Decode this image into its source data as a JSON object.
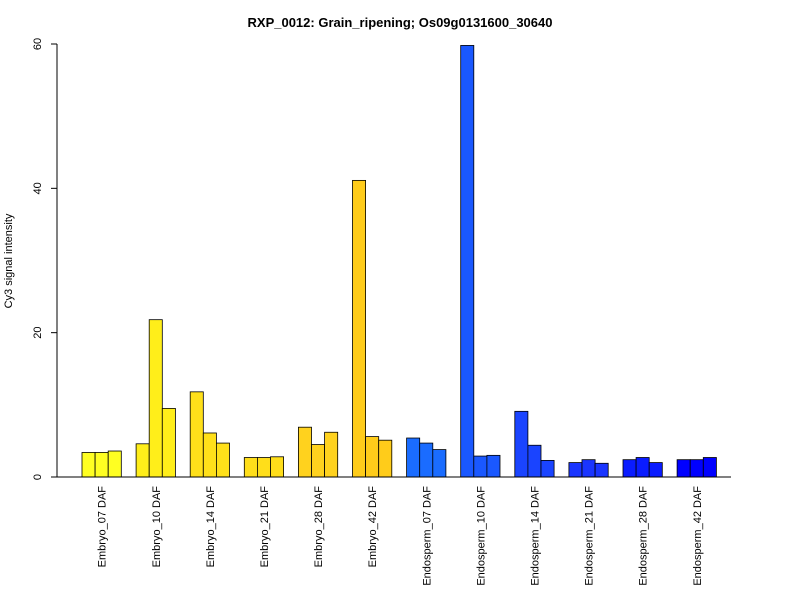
{
  "chart_data": {
    "type": "bar",
    "title": "RXP_0012: Grain_ripening; Os09g0131600_30640",
    "xlabel": "",
    "ylabel": "Cy3 signal intensity",
    "ylim": [
      0,
      60
    ],
    "yticks": [
      "0",
      "20",
      "40",
      "60"
    ],
    "grid": false,
    "legend": "none",
    "categories": [
      "Embryo_07 DAF",
      "Embryo_10 DAF",
      "Embryo_14 DAF",
      "Embryo_21 DAF",
      "Embryo_28 DAF",
      "Embryo_42 DAF",
      "Endosperm_07 DAF",
      "Endosperm_10 DAF",
      "Endosperm_14 DAF",
      "Endosperm_21 DAF",
      "Endosperm_28 DAF",
      "Endosperm_42 DAF"
    ],
    "groups": [
      {
        "color": "#ffff22",
        "values": [
          3.4,
          3.4,
          3.6
        ]
      },
      {
        "color": "#ffee1a",
        "values": [
          4.6,
          21.8,
          9.5
        ]
      },
      {
        "color": "#ffe01a",
        "values": [
          11.8,
          6.1,
          4.7
        ]
      },
      {
        "color": "#ffde1a",
        "values": [
          2.7,
          2.7,
          2.8
        ]
      },
      {
        "color": "#ffd21e",
        "values": [
          6.9,
          4.5,
          6.2
        ]
      },
      {
        "color": "#ffcc1a",
        "values": [
          41.1,
          5.6,
          5.1
        ]
      },
      {
        "color": "#1a6cff",
        "values": [
          5.4,
          4.7,
          3.8
        ]
      },
      {
        "color": "#1a58ff",
        "values": [
          59.8,
          2.9,
          3.0
        ]
      },
      {
        "color": "#1a44ff",
        "values": [
          9.1,
          4.4,
          2.3
        ]
      },
      {
        "color": "#1a35ff",
        "values": [
          2.0,
          2.4,
          1.9
        ]
      },
      {
        "color": "#0a1cff",
        "values": [
          2.4,
          2.7,
          2.0
        ]
      },
      {
        "color": "#0000ff",
        "values": [
          2.4,
          2.4,
          2.7
        ]
      }
    ]
  }
}
